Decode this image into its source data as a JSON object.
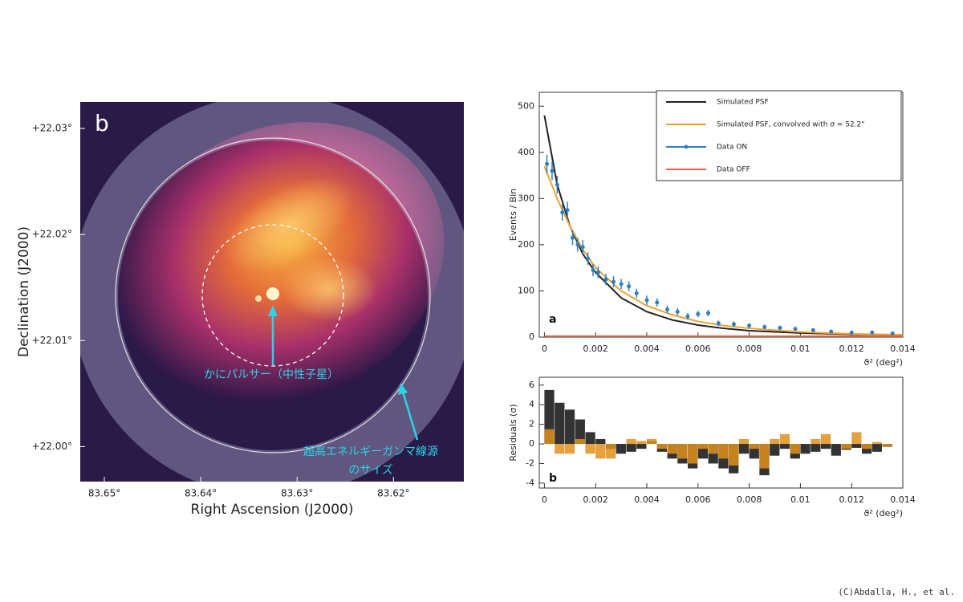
{
  "credit": "(C)Abdalla, H., et al.",
  "chart_data": [
    {
      "type": "image",
      "xlabel": "Right Ascension (J2000)",
      "ylabel": "Declination (J2000)",
      "annotations": [
        "b",
        "かにパルサー（中性子星）",
        "超高エネルギーガンマ線源",
        "のサイズ"
      ],
      "xlim": [
        83.6525,
        83.6127
      ],
      "ylim": [
        21.9967,
        22.0325
      ],
      "xticks": [
        {
          "value": 83.65,
          "label": "83.65°"
        },
        {
          "value": 83.64,
          "label": "83.64°"
        },
        {
          "value": 83.63,
          "label": "83.63°"
        },
        {
          "value": 83.62,
          "label": "83.62°"
        }
      ],
      "yticks": [
        {
          "value": 22.03,
          "label": "+22.03°"
        },
        {
          "value": 22.02,
          "label": "+22.02°"
        },
        {
          "value": 22.01,
          "label": "+22.01°"
        },
        {
          "value": 22.0,
          "label": "+22.00°"
        }
      ]
    },
    {
      "type": "line",
      "xlabel": "ϑ² (deg²)",
      "ylabel": "Events / Bin",
      "annotations": [
        "a"
      ],
      "legend": "upper right",
      "xlim": [
        -0.0002,
        0.014
      ],
      "ylim": [
        0,
        530
      ],
      "xticks": [
        0,
        0.002,
        0.004,
        0.006,
        0.008,
        0.01,
        0.012,
        0.014
      ],
      "yticks": [
        0,
        100,
        200,
        300,
        400,
        500
      ],
      "series": [
        {
          "name": "Simulated PSF",
          "color": "#222222",
          "style": "line",
          "x": [
            0,
            0.0005,
            0.001,
            0.0015,
            0.002,
            0.003,
            0.004,
            0.005,
            0.006,
            0.007,
            0.008,
            0.01,
            0.012,
            0.014
          ],
          "values": [
            480,
            330,
            240,
            180,
            140,
            85,
            55,
            37,
            26,
            19,
            14,
            9,
            6,
            5
          ]
        },
        {
          "name": "Simulated PSF, convolved with σ = 52.2\"",
          "color": "#f0a030",
          "style": "line",
          "x": [
            0,
            0.0005,
            0.001,
            0.0015,
            0.002,
            0.003,
            0.004,
            0.005,
            0.006,
            0.007,
            0.008,
            0.01,
            0.012,
            0.014
          ],
          "values": [
            370,
            300,
            240,
            190,
            150,
            100,
            68,
            48,
            34,
            25,
            19,
            11,
            7,
            5
          ]
        },
        {
          "name": "Data ON",
          "color": "#2f7fc1",
          "style": "points",
          "x": [
            0.0001,
            0.0003,
            0.0005,
            0.0007,
            0.0009,
            0.0011,
            0.0013,
            0.0015,
            0.0017,
            0.0019,
            0.0021,
            0.0024,
            0.0027,
            0.003,
            0.0033,
            0.0036,
            0.004,
            0.0044,
            0.0048,
            0.0052,
            0.0056,
            0.006,
            0.0064,
            0.0068,
            0.0074,
            0.008,
            0.0086,
            0.0092,
            0.0098,
            0.0105,
            0.0112,
            0.012,
            0.0128,
            0.0136
          ],
          "values": [
            375,
            360,
            330,
            270,
            275,
            215,
            200,
            195,
            170,
            145,
            140,
            125,
            120,
            115,
            110,
            95,
            80,
            75,
            60,
            55,
            45,
            50,
            52,
            30,
            28,
            25,
            22,
            20,
            18,
            15,
            12,
            10,
            10,
            8
          ],
          "errors": [
            20,
            20,
            19,
            18,
            18,
            16,
            15,
            15,
            14,
            13,
            13,
            12,
            12,
            11,
            11,
            10,
            10,
            9,
            8,
            8,
            7,
            7,
            7,
            6,
            6,
            5,
            5,
            5,
            4,
            4,
            4,
            4,
            4,
            3
          ]
        },
        {
          "name": "Data OFF",
          "color": "#f06040",
          "style": "line",
          "x": [
            0,
            0.014
          ],
          "values": [
            2,
            2
          ]
        }
      ]
    },
    {
      "type": "histogram",
      "xlabel": "ϑ² (deg²)",
      "ylabel": "Residuals (σ)",
      "annotations": [
        "b"
      ],
      "xlim": [
        -0.0002,
        0.014
      ],
      "ylim": [
        -4.5,
        6.8
      ],
      "xticks": [
        0,
        0.002,
        0.004,
        0.006,
        0.008,
        0.01,
        0.012,
        0.014
      ],
      "yticks": [
        -4,
        -2,
        0,
        2,
        4,
        6
      ],
      "bins": [
        0,
        0.0004,
        0.0008,
        0.0012,
        0.0016,
        0.002,
        0.0024,
        0.0028,
        0.0032,
        0.0036,
        0.004,
        0.0044,
        0.0048,
        0.0052,
        0.0056,
        0.006,
        0.0064,
        0.0068,
        0.0072,
        0.0076,
        0.008,
        0.0084,
        0.0088,
        0.0092,
        0.0096,
        0.01,
        0.0104,
        0.0108,
        0.0112,
        0.0116,
        0.012,
        0.0124,
        0.0128,
        0.0132,
        0.0136
      ],
      "series": [
        {
          "color": "#333333",
          "values": [
            5.5,
            4.2,
            3.5,
            2.5,
            1.2,
            0.5,
            -0.5,
            -1,
            -0.8,
            -0.5,
            0.3,
            -0.8,
            -1.5,
            -2,
            -2.5,
            -1.5,
            -2,
            -2.5,
            -3,
            -1,
            -1.5,
            -3.2,
            -1.2,
            -0.5,
            -1.5,
            -1,
            -0.8,
            -0.5,
            -1.2,
            -0.6,
            -0.4,
            -1,
            -0.8,
            -0.3
          ]
        },
        {
          "color": "#e0901c",
          "values": [
            1.5,
            -1,
            -1,
            0.5,
            -1,
            -1.5,
            -1.5,
            0,
            0.5,
            0.3,
            0.5,
            -0.5,
            -1,
            -1.5,
            -2,
            -0.5,
            -1,
            -1.5,
            -2.2,
            0.5,
            -0.5,
            -2.5,
            0.5,
            1,
            -1,
            0,
            0.5,
            1,
            0,
            -0.5,
            1.2,
            -0.5,
            0.2,
            -0.3
          ]
        }
      ]
    }
  ]
}
